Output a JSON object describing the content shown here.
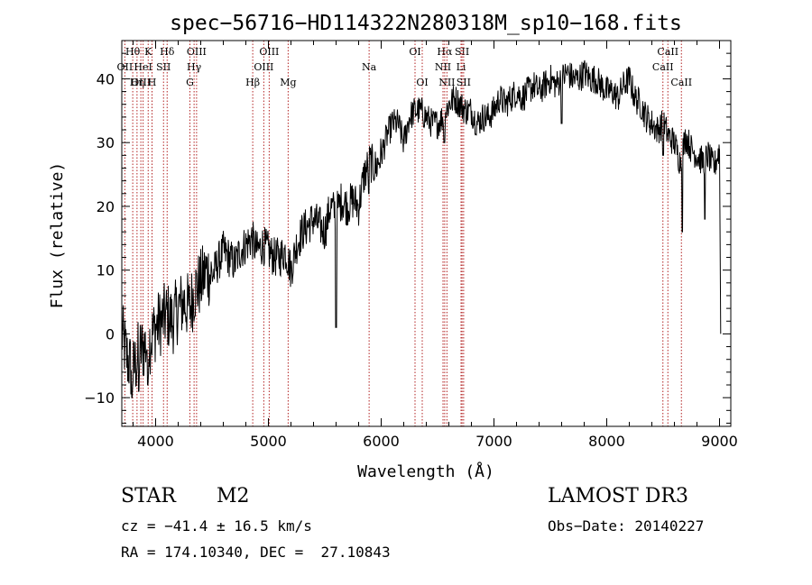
{
  "chart_data": {
    "type": "line",
    "title": "spec−56716−HD114322N280318M_sp10−168.fits",
    "xlabel": "Wavelength (Å)",
    "ylabel": "Flux (relative)",
    "xlim": [
      3700,
      9100
    ],
    "ylim": [
      -14.5,
      46
    ],
    "xticks": [
      4000,
      5000,
      6000,
      7000,
      8000,
      9000
    ],
    "yticks": [
      -10,
      0,
      10,
      20,
      30,
      40
    ],
    "x_minor_step": 200,
    "y_minor_step": 2,
    "series": [
      {
        "name": "flux",
        "color": "#000000",
        "x": [
          3700,
          3750,
          3800,
          3850,
          3900,
          3950,
          4000,
          4050,
          4100,
          4150,
          4200,
          4250,
          4300,
          4350,
          4400,
          4450,
          4500,
          4550,
          4600,
          4650,
          4700,
          4750,
          4800,
          4850,
          4900,
          4950,
          5000,
          5050,
          5100,
          5150,
          5200,
          5250,
          5300,
          5350,
          5400,
          5450,
          5500,
          5550,
          5600,
          5650,
          5700,
          5750,
          5800,
          5850,
          5900,
          5950,
          6000,
          6050,
          6100,
          6150,
          6200,
          6250,
          6300,
          6350,
          6400,
          6450,
          6500,
          6550,
          6600,
          6650,
          6700,
          6750,
          6800,
          6850,
          6900,
          6950,
          7000,
          7050,
          7100,
          7150,
          7200,
          7250,
          7300,
          7350,
          7400,
          7450,
          7500,
          7550,
          7600,
          7650,
          7700,
          7750,
          7800,
          7850,
          7900,
          7950,
          8000,
          8050,
          8100,
          8150,
          8200,
          8250,
          8300,
          8350,
          8400,
          8450,
          8500,
          8550,
          8600,
          8650,
          8700,
          8750,
          8800,
          8850,
          8900,
          8950,
          9000,
          9010
        ],
        "y": [
          0,
          -4,
          -6,
          -3,
          -2,
          -1,
          1,
          2,
          3,
          2,
          4,
          5,
          4,
          7,
          8,
          10,
          9,
          11,
          13,
          12,
          11,
          13,
          14,
          15,
          13,
          14,
          13,
          12,
          12,
          13,
          10,
          14,
          16,
          17,
          18,
          17,
          16,
          20,
          19,
          21,
          20,
          21,
          20,
          25,
          27,
          26,
          28,
          31,
          33,
          33,
          30,
          34,
          35,
          35,
          34,
          33,
          33,
          34,
          36,
          37,
          36,
          35,
          35,
          33,
          34,
          34,
          35,
          37,
          36,
          37,
          38,
          37,
          38,
          39,
          38,
          39,
          40,
          39,
          40,
          41,
          40,
          40,
          41,
          40,
          40,
          39,
          38,
          38,
          37,
          39,
          40,
          37,
          36,
          34,
          33,
          32,
          33,
          31,
          30,
          27,
          31,
          29,
          28,
          27,
          28,
          26,
          29,
          0
        ]
      }
    ],
    "dips": [
      {
        "x": 3790,
        "y": -10
      },
      {
        "x": 3850,
        "y": -9
      },
      {
        "x": 3930,
        "y": -8
      },
      {
        "x": 5600,
        "y": 1
      },
      {
        "x": 5890,
        "y": 22
      },
      {
        "x": 6560,
        "y": 30
      },
      {
        "x": 7600,
        "y": 33
      },
      {
        "x": 8500,
        "y": 28
      },
      {
        "x": 8670,
        "y": 16
      },
      {
        "x": 8870,
        "y": 18
      }
    ],
    "line_markers": [
      {
        "label": "Hθ",
        "x": 3797,
        "row": 0
      },
      {
        "label": "OII",
        "x": 3727,
        "row": 1
      },
      {
        "label": "OIII",
        "x": 3869,
        "row": 2
      },
      {
        "label": "Hη",
        "x": 3835,
        "row": 2
      },
      {
        "label": "K",
        "x": 3934,
        "row": 0
      },
      {
        "label": "HeI",
        "x": 3889,
        "row": 1
      },
      {
        "label": "H",
        "x": 3968,
        "row": 2
      },
      {
        "label": "Hδ",
        "x": 4102,
        "row": 0
      },
      {
        "label": "SII",
        "x": 4070,
        "row": 1
      },
      {
        "label": "OIII",
        "x": 4363,
        "row": 0
      },
      {
        "label": "Hγ",
        "x": 4341,
        "row": 1
      },
      {
        "label": "G",
        "x": 4304,
        "row": 2
      },
      {
        "label": "OIII",
        "x": 5007,
        "row": 0
      },
      {
        "label": "OIII",
        "x": 4959,
        "row": 1
      },
      {
        "label": "Hβ",
        "x": 4861,
        "row": 2
      },
      {
        "label": "Mg",
        "x": 5175,
        "row": 2
      },
      {
        "label": "Na",
        "x": 5893,
        "row": 1
      },
      {
        "label": "OI",
        "x": 6300,
        "row": 0
      },
      {
        "label": "OI",
        "x": 6364,
        "row": 2
      },
      {
        "label": "Hα",
        "x": 6563,
        "row": 0
      },
      {
        "label": "SII",
        "x": 6717,
        "row": 0
      },
      {
        "label": "NII",
        "x": 6548,
        "row": 1
      },
      {
        "label": "Li",
        "x": 6708,
        "row": 1
      },
      {
        "label": "NII",
        "x": 6583,
        "row": 2
      },
      {
        "label": "SII",
        "x": 6731,
        "row": 2
      },
      {
        "label": "CaII",
        "x": 8542,
        "row": 0
      },
      {
        "label": "CaII",
        "x": 8498,
        "row": 1
      },
      {
        "label": "CaII",
        "x": 8662,
        "row": 2
      }
    ]
  },
  "info": {
    "object_class": "STAR",
    "subclass": "M2",
    "survey": "LAMOST DR3",
    "redshift": "cz = −41.4 ± 16.5 km/s",
    "obs_date": "Obs−Date: 20140227",
    "coords": "RA = 174.10340, DEC =  27.10843"
  },
  "colors": {
    "axis": "#000000",
    "spectrum": "#000000",
    "line_marker": "#b22222"
  }
}
